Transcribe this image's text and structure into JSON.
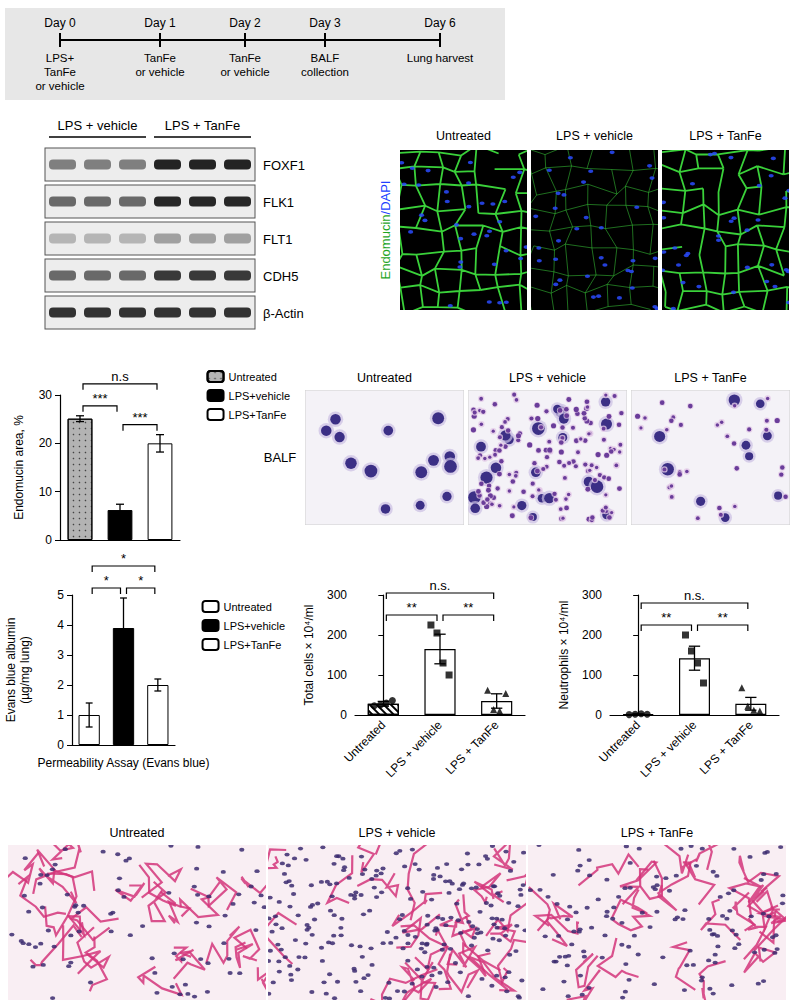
{
  "timeline": {
    "days": [
      {
        "day": "Day 0",
        "events": [
          "LPS+",
          "TanFe",
          "or vehicle"
        ]
      },
      {
        "day": "Day 1",
        "events": [
          "TanFe",
          "or vehicle"
        ]
      },
      {
        "day": "Day 2",
        "events": [
          "TanFe",
          "or vehicle"
        ]
      },
      {
        "day": "Day 3",
        "events": [
          "BALF",
          "collection"
        ]
      },
      {
        "day": "Day 6",
        "events": [
          "Lung harvest"
        ]
      }
    ]
  },
  "western_blot": {
    "groups": [
      "LPS + vehicle",
      "LPS + TanFe"
    ],
    "bands": [
      "FOXF1",
      "FLK1",
      "FLT1",
      "CDH5",
      "β-Actin"
    ]
  },
  "endomucin_images": {
    "stain": [
      "Endomucin",
      "/DAPI"
    ],
    "panels": [
      "Untreated",
      "LPS + vehicle",
      "LPS + TanFe"
    ]
  },
  "balf_images": {
    "label": "BALF",
    "panels": [
      "Untreated",
      "LPS + vehicle",
      "LPS + TanFe"
    ]
  },
  "histology_images": {
    "panels": [
      "Untreated",
      "LPS + vehicle",
      "LPS + TanFe"
    ]
  },
  "chart_data": [
    {
      "type": "bar",
      "ylabel": "Endomucin area, %",
      "categories": [
        "Untreated",
        "LPS+vehicle",
        "LPS+TanFe"
      ],
      "values": [
        25.1,
        6.2,
        20.0
      ],
      "errors": [
        0.6,
        1.2,
        1.8
      ],
      "colors": [
        "#b3b3b3",
        "#000000",
        "#ffffff"
      ],
      "ylim": [
        0,
        30
      ],
      "yticks": [
        0,
        10,
        20,
        30
      ],
      "grid": false,
      "legend": "top-right",
      "tick_labels": "y",
      "annotations": [
        {
          "from": 0,
          "to": 2,
          "text": "n.s"
        },
        {
          "from": 0,
          "to": 1,
          "text": "***"
        },
        {
          "from": 1,
          "to": 2,
          "text": "***"
        }
      ]
    },
    {
      "type": "bar",
      "ylabel": "Evans blue albumin\n(µg/mg lung)",
      "xlabel": "Permeability Assay (Evans blue)",
      "categories": [
        "Untreated",
        "LPS+vehicle",
        "LPS+TanFe"
      ],
      "values": [
        1.0,
        3.9,
        2.0
      ],
      "errors": [
        0.4,
        1.0,
        0.2
      ],
      "colors": [
        "#ffffff",
        "#000000",
        "#ffffff"
      ],
      "ylim": [
        0,
        5
      ],
      "yticks": [
        0,
        1,
        2,
        3,
        4,
        5
      ],
      "grid": false,
      "legend": "top-right",
      "tick_labels": "y",
      "annotations": [
        {
          "from": 0,
          "to": 1,
          "text": "*"
        },
        {
          "from": 1,
          "to": 2,
          "text": "*"
        },
        {
          "from": 0,
          "to": 2,
          "text": "*"
        }
      ]
    },
    {
      "type": "bar",
      "ylabel": "Total cells × 10⁴/ml",
      "categories": [
        "Untreated",
        "LPS + vehicle",
        "LPS + TanFe"
      ],
      "values": [
        28,
        165,
        35
      ],
      "errors": [
        6,
        37,
        18
      ],
      "color": "#ffffff",
      "points": [
        {
          "marker": "circle",
          "values": [
            23,
            25,
            30,
            36
          ]
        },
        {
          "marker": "square",
          "values": [
            225,
            205,
            130,
            100
          ]
        },
        {
          "marker": "triangle",
          "values": [
            62,
            14,
            10,
            54
          ]
        }
      ],
      "ylim": [
        0,
        300
      ],
      "yticks": [
        0,
        100,
        200,
        300
      ],
      "grid": false,
      "annotations": [
        {
          "from": 0,
          "to": 1,
          "text": "**"
        },
        {
          "from": 1,
          "to": 2,
          "text": "**"
        },
        {
          "from": 0,
          "to": 2,
          "text": "n.s."
        }
      ]
    },
    {
      "type": "bar",
      "ylabel": "Neutrophils × 10⁴/ml",
      "categories": [
        "Untreated",
        "LPS + vehicle",
        "LPS + TanFe"
      ],
      "values": [
        2,
        142,
        28
      ],
      "errors": [
        1,
        30,
        16
      ],
      "color": "#ffffff",
      "points": [
        {
          "marker": "circle",
          "values": [
            1,
            2,
            3,
            2
          ]
        },
        {
          "marker": "square",
          "values": [
            200,
            160,
            130,
            80
          ]
        },
        {
          "marker": "triangle",
          "values": [
            68,
            22,
            12,
            10
          ]
        }
      ],
      "ylim": [
        0,
        300
      ],
      "yticks": [
        0,
        100,
        200,
        300
      ],
      "grid": false,
      "annotations": [
        {
          "from": 0,
          "to": 1,
          "text": "**"
        },
        {
          "from": 1,
          "to": 2,
          "text": "**"
        },
        {
          "from": 0,
          "to": 2,
          "text": "n.s."
        }
      ]
    }
  ]
}
